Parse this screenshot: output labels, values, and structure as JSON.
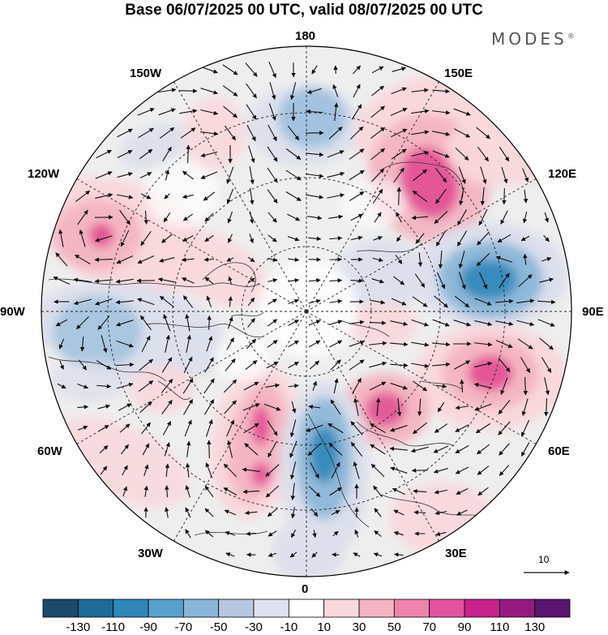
{
  "title": "Base 06/07/2025 00 UTC, valid 08/07/2025 00 UTC",
  "brand": "MODES",
  "brand_mark": "®",
  "longitude_labels": {
    "n180": "180",
    "w150": "150W",
    "e150": "150E",
    "w120": "120W",
    "e120": "120E",
    "w90": "90W",
    "e90": "90E",
    "w60": "60W",
    "e60": "60E",
    "w30": "30W",
    "e30": "30E",
    "s0": "0"
  },
  "reference_vector": {
    "value": "10"
  },
  "colorbar": {
    "colors": [
      "#1b4a6b",
      "#1e6a98",
      "#2f86b9",
      "#57a1cc",
      "#89b5d8",
      "#b8c6e0",
      "#e0e0ee",
      "#ffffff",
      "#f9d8dc",
      "#f3b3c0",
      "#ee83ad",
      "#e3539d",
      "#c8228b",
      "#941a7f",
      "#5a1570"
    ],
    "tick_labels": [
      "-130",
      "-110",
      "-90",
      "-70",
      "-50",
      "-30",
      "-10",
      "10",
      "30",
      "50",
      "70",
      "90",
      "110",
      "130"
    ]
  },
  "map": {
    "projection": "north polar stereographic",
    "field_colors": {
      "strong_positive": "#e0468f",
      "positive": "#f3b3c0",
      "weak_positive": "#f9d8dc",
      "strong_negative": "#2f86b9",
      "negative": "#89b5d8",
      "weak_negative": "#dcdfec",
      "neutral": "#eeeeee"
    }
  }
}
